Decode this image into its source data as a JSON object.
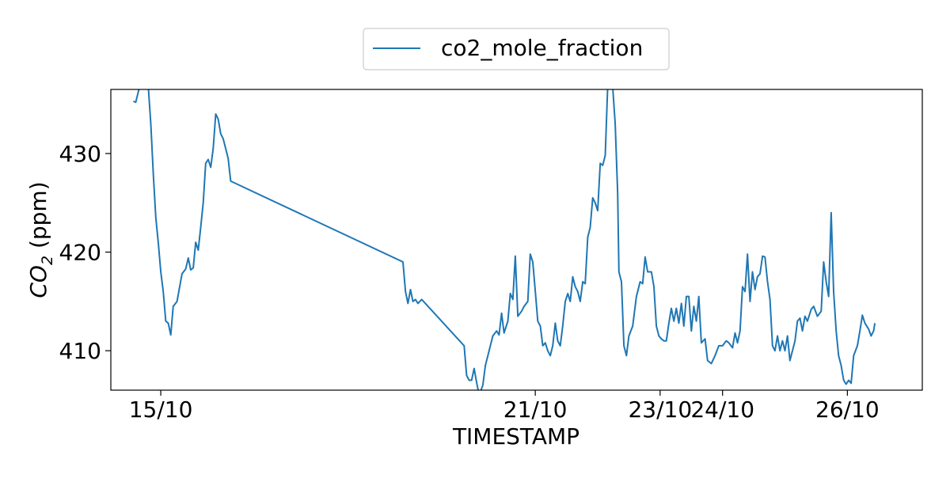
{
  "chart_data": {
    "type": "line",
    "title": "",
    "xlabel": "TIMESTAMP",
    "ylabel_main": "CO",
    "ylabel_sub": "2",
    "ylabel_unit": " (ppm)",
    "legend_placement": "top-center",
    "grid": false,
    "xlim": [
      14.2,
      27.2
    ],
    "ylim": [
      406.0,
      436.5
    ],
    "x_ticks": [
      {
        "value": 15.0,
        "label": "15/10"
      },
      {
        "value": 21.0,
        "label": "21/10"
      },
      {
        "value": 23.0,
        "label": "23/10"
      },
      {
        "value": 24.0,
        "label": "24/10"
      },
      {
        "value": 26.0,
        "label": "26/10"
      }
    ],
    "y_ticks": [
      {
        "value": 410,
        "label": "410"
      },
      {
        "value": 420,
        "label": "420"
      },
      {
        "value": 430,
        "label": "430"
      }
    ],
    "series": [
      {
        "name": "co2_mole_fraction",
        "color": "#1f77b4",
        "points": [
          [
            14.56,
            435.3
          ],
          [
            14.6,
            435.2
          ],
          [
            14.66,
            436.8
          ],
          [
            14.8,
            436.8
          ],
          [
            14.84,
            433.0
          ],
          [
            14.88,
            428.0
          ],
          [
            14.92,
            423.5
          ],
          [
            14.96,
            421.0
          ],
          [
            15.0,
            418.0
          ],
          [
            15.04,
            416.0
          ],
          [
            15.08,
            413.0
          ],
          [
            15.12,
            412.8
          ],
          [
            15.16,
            411.6
          ],
          [
            15.2,
            414.5
          ],
          [
            15.26,
            415.0
          ],
          [
            15.34,
            417.8
          ],
          [
            15.4,
            418.3
          ],
          [
            15.44,
            419.4
          ],
          [
            15.48,
            418.2
          ],
          [
            15.52,
            418.4
          ],
          [
            15.56,
            421.0
          ],
          [
            15.6,
            420.2
          ],
          [
            15.64,
            422.5
          ],
          [
            15.68,
            425.0
          ],
          [
            15.72,
            429.0
          ],
          [
            15.76,
            429.4
          ],
          [
            15.8,
            428.6
          ],
          [
            15.84,
            430.5
          ],
          [
            15.88,
            434.0
          ],
          [
            15.92,
            433.5
          ],
          [
            15.96,
            432.0
          ],
          [
            16.0,
            431.5
          ],
          [
            16.04,
            430.5
          ],
          [
            16.08,
            429.5
          ],
          [
            16.12,
            427.2
          ],
          [
            18.88,
            419.0
          ],
          [
            18.92,
            416.0
          ],
          [
            18.96,
            414.8
          ],
          [
            19.0,
            416.2
          ],
          [
            19.04,
            415.0
          ],
          [
            19.08,
            415.2
          ],
          [
            19.12,
            414.8
          ],
          [
            19.18,
            415.2
          ],
          [
            19.86,
            410.5
          ],
          [
            19.9,
            407.5
          ],
          [
            19.94,
            407.0
          ],
          [
            19.98,
            407.0
          ],
          [
            20.02,
            408.2
          ],
          [
            20.06,
            406.8
          ],
          [
            20.1,
            405.5
          ],
          [
            20.16,
            406.5
          ],
          [
            20.2,
            408.5
          ],
          [
            20.26,
            410.0
          ],
          [
            20.32,
            411.5
          ],
          [
            20.38,
            412.0
          ],
          [
            20.42,
            411.6
          ],
          [
            20.46,
            413.8
          ],
          [
            20.5,
            411.8
          ],
          [
            20.56,
            413.0
          ],
          [
            20.6,
            415.8
          ],
          [
            20.64,
            415.2
          ],
          [
            20.68,
            419.6
          ],
          [
            20.72,
            413.5
          ],
          [
            20.78,
            414.0
          ],
          [
            20.82,
            414.5
          ],
          [
            20.88,
            415.0
          ],
          [
            20.92,
            419.8
          ],
          [
            20.96,
            419.0
          ],
          [
            21.0,
            416.0
          ],
          [
            21.04,
            413.0
          ],
          [
            21.08,
            412.5
          ],
          [
            21.12,
            410.5
          ],
          [
            21.16,
            410.8
          ],
          [
            21.2,
            410.0
          ],
          [
            21.24,
            409.5
          ],
          [
            21.28,
            410.5
          ],
          [
            21.32,
            412.8
          ],
          [
            21.36,
            411.0
          ],
          [
            21.4,
            410.5
          ],
          [
            21.44,
            412.5
          ],
          [
            21.48,
            415.0
          ],
          [
            21.52,
            415.8
          ],
          [
            21.56,
            415.0
          ],
          [
            21.6,
            417.5
          ],
          [
            21.64,
            416.5
          ],
          [
            21.68,
            416.0
          ],
          [
            21.72,
            415.0
          ],
          [
            21.76,
            417.0
          ],
          [
            21.8,
            416.8
          ],
          [
            21.84,
            421.5
          ],
          [
            21.88,
            422.5
          ],
          [
            21.92,
            425.5
          ],
          [
            21.96,
            425.0
          ],
          [
            22.0,
            424.2
          ],
          [
            22.04,
            429.0
          ],
          [
            22.08,
            428.8
          ],
          [
            22.12,
            429.8
          ],
          [
            22.16,
            436.8
          ],
          [
            22.24,
            436.8
          ],
          [
            22.28,
            433.0
          ],
          [
            22.32,
            426.0
          ],
          [
            22.34,
            418.0
          ],
          [
            22.38,
            417.0
          ],
          [
            22.42,
            410.5
          ],
          [
            22.46,
            409.5
          ],
          [
            22.5,
            411.5
          ],
          [
            22.56,
            412.5
          ],
          [
            22.62,
            415.5
          ],
          [
            22.68,
            417.0
          ],
          [
            22.72,
            416.8
          ],
          [
            22.76,
            419.5
          ],
          [
            22.8,
            418.0
          ],
          [
            22.86,
            418.0
          ],
          [
            22.9,
            416.5
          ],
          [
            22.94,
            412.5
          ],
          [
            22.98,
            411.5
          ],
          [
            23.02,
            411.2
          ],
          [
            23.06,
            411.0
          ],
          [
            23.1,
            411.0
          ],
          [
            23.14,
            412.8
          ],
          [
            23.18,
            414.3
          ],
          [
            23.22,
            413.0
          ],
          [
            23.26,
            414.3
          ],
          [
            23.3,
            412.8
          ],
          [
            23.34,
            414.8
          ],
          [
            23.38,
            412.5
          ],
          [
            23.42,
            415.5
          ],
          [
            23.46,
            415.5
          ],
          [
            23.5,
            412.0
          ],
          [
            23.54,
            414.5
          ],
          [
            23.58,
            413.0
          ],
          [
            23.62,
            415.5
          ],
          [
            23.66,
            410.8
          ],
          [
            23.72,
            411.2
          ],
          [
            23.76,
            409.0
          ],
          [
            23.82,
            408.7
          ],
          [
            23.88,
            409.5
          ],
          [
            23.94,
            410.5
          ],
          [
            24.0,
            410.5
          ],
          [
            24.06,
            411.0
          ],
          [
            24.1,
            410.8
          ],
          [
            24.16,
            410.3
          ],
          [
            24.2,
            411.8
          ],
          [
            24.24,
            410.8
          ],
          [
            24.28,
            412.0
          ],
          [
            24.32,
            416.5
          ],
          [
            24.36,
            416.0
          ],
          [
            24.4,
            419.8
          ],
          [
            24.44,
            415.0
          ],
          [
            24.48,
            418.0
          ],
          [
            24.52,
            416.2
          ],
          [
            24.56,
            417.5
          ],
          [
            24.6,
            417.8
          ],
          [
            24.64,
            419.6
          ],
          [
            24.68,
            419.5
          ],
          [
            24.72,
            417.0
          ],
          [
            24.76,
            415.2
          ],
          [
            24.8,
            410.5
          ],
          [
            24.84,
            410.0
          ],
          [
            24.88,
            411.5
          ],
          [
            24.92,
            410.0
          ],
          [
            24.96,
            411.0
          ],
          [
            25.0,
            410.0
          ],
          [
            25.04,
            411.5
          ],
          [
            25.08,
            409.0
          ],
          [
            25.12,
            410.0
          ],
          [
            25.16,
            411.0
          ],
          [
            25.2,
            413.0
          ],
          [
            25.24,
            413.3
          ],
          [
            25.28,
            412.0
          ],
          [
            25.32,
            413.5
          ],
          [
            25.36,
            413.0
          ],
          [
            25.42,
            414.2
          ],
          [
            25.46,
            414.5
          ],
          [
            25.52,
            413.5
          ],
          [
            25.58,
            414.0
          ],
          [
            25.62,
            419.0
          ],
          [
            25.66,
            417.0
          ],
          [
            25.7,
            415.5
          ],
          [
            25.74,
            424.0
          ],
          [
            25.78,
            416.0
          ],
          [
            25.82,
            412.0
          ],
          [
            25.86,
            409.5
          ],
          [
            25.9,
            408.5
          ],
          [
            25.94,
            407.0
          ],
          [
            25.98,
            406.6
          ],
          [
            26.02,
            407.0
          ],
          [
            26.06,
            406.7
          ],
          [
            26.1,
            409.5
          ],
          [
            26.16,
            410.5
          ],
          [
            26.2,
            412.0
          ],
          [
            26.24,
            413.6
          ],
          [
            26.28,
            412.8
          ],
          [
            26.34,
            412.2
          ],
          [
            26.38,
            411.5
          ],
          [
            26.42,
            412.0
          ],
          [
            26.44,
            412.8
          ]
        ]
      }
    ]
  }
}
